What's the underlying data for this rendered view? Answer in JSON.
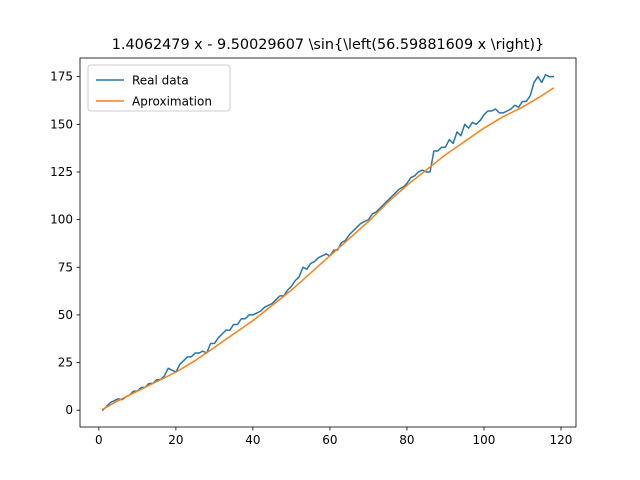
{
  "chart_data": {
    "type": "line",
    "title": "1.4062479 x - 9.50029607 \\sin{\\left(56.59881609 x \\right)}",
    "xlabel": "",
    "ylabel": "",
    "xlim": [
      -4.9,
      123.9
    ],
    "ylim": [
      -8.8,
      184.8
    ],
    "xticks": [
      0,
      20,
      40,
      60,
      80,
      100,
      120
    ],
    "yticks": [
      0,
      25,
      50,
      75,
      100,
      125,
      150,
      175
    ],
    "grid": false,
    "legend_position": "upper-left",
    "series": [
      {
        "name": "Real data",
        "color": "#1f77b4",
        "x": [
          1,
          2,
          3,
          4,
          5,
          6,
          7,
          8,
          9,
          10,
          11,
          12,
          13,
          14,
          15,
          16,
          17,
          18,
          19,
          20,
          21,
          22,
          23,
          24,
          25,
          26,
          27,
          28,
          29,
          30,
          31,
          32,
          33,
          34,
          35,
          36,
          37,
          38,
          39,
          40,
          41,
          42,
          43,
          44,
          45,
          46,
          47,
          48,
          49,
          50,
          51,
          52,
          53,
          54,
          55,
          56,
          57,
          58,
          59,
          60,
          61,
          62,
          63,
          64,
          65,
          66,
          67,
          68,
          69,
          70,
          71,
          72,
          73,
          74,
          75,
          76,
          77,
          78,
          79,
          80,
          81,
          82,
          83,
          84,
          85,
          86,
          87,
          88,
          89,
          90,
          91,
          92,
          93,
          94,
          95,
          96,
          97,
          98,
          99,
          100,
          101,
          102,
          103,
          104,
          105,
          106,
          107,
          108,
          109,
          110,
          111,
          112,
          113,
          114,
          115,
          116,
          117,
          118
        ],
        "y": [
          0,
          2,
          4,
          5,
          6,
          5.5,
          7,
          8,
          10,
          10,
          12,
          12,
          14,
          14,
          16,
          16,
          18,
          22,
          21,
          20,
          24,
          26,
          28,
          28,
          30,
          30,
          31,
          30,
          35,
          35,
          38,
          40,
          42,
          42,
          45,
          45,
          48,
          48,
          50,
          50,
          51,
          52,
          54,
          55,
          56,
          58,
          60,
          60,
          63,
          65,
          68,
          70,
          75,
          74,
          77,
          78,
          80,
          81,
          82,
          81,
          84,
          84,
          88,
          89,
          92,
          94,
          96,
          98,
          99,
          100,
          103,
          104,
          106,
          108,
          110,
          112,
          114,
          116,
          117,
          119,
          122,
          123,
          125,
          126,
          125,
          125,
          136,
          136,
          138,
          138,
          142,
          140,
          146,
          144,
          150,
          148,
          151,
          150,
          152,
          155,
          157,
          157,
          158,
          156,
          156,
          157,
          158,
          160,
          159,
          162,
          162,
          165,
          172,
          175,
          172,
          176,
          175,
          175
        ]
      },
      {
        "name": "Aproximation",
        "color": "#ff7f0e",
        "x": [
          1,
          5,
          10,
          15,
          20,
          25,
          30,
          35,
          40,
          45,
          50,
          55,
          60,
          65,
          70,
          75,
          80,
          85,
          90,
          95,
          100,
          105,
          110,
          115,
          118
        ],
        "y": [
          0.5,
          5,
          10,
          15,
          20,
          26,
          33,
          40,
          47,
          55,
          63,
          72,
          81,
          90,
          99,
          109,
          118,
          126,
          134,
          141,
          148,
          154,
          159,
          165,
          169
        ]
      }
    ]
  }
}
